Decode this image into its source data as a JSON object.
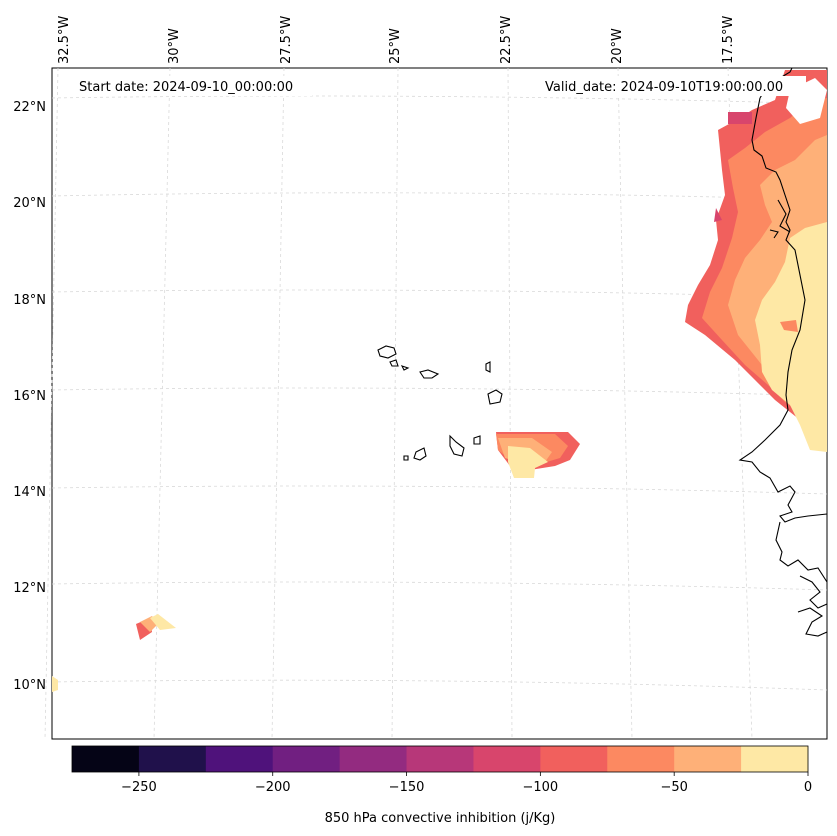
{
  "map": {
    "start_date": "Start date: 2024-09-10_00:00:00",
    "valid_date": "Valid_date: 2024-09-10T19:00:00.00",
    "lon_labels": [
      "32.5°W",
      "30°W",
      "27.5°W",
      "25°W",
      "22.5°W",
      "20°W",
      "17.5°W"
    ],
    "lat_labels": [
      "22°N",
      "20°N",
      "18°N",
      "16°N",
      "14°N",
      "12°N",
      "10°N"
    ],
    "coastline_color": "#000000",
    "gridline_color": "#d9d9d9"
  },
  "colorbar": {
    "label": "850 hPa convective inhibition (j/Kg)",
    "ticks": [
      "−250",
      "−200",
      "−150",
      "−100",
      "−50",
      "0"
    ],
    "levels": [
      -275,
      -250,
      -225,
      -200,
      -175,
      -150,
      -125,
      -100,
      -75,
      -50,
      -25,
      0
    ],
    "colors": [
      "#050416",
      "#20114b",
      "#4f127b",
      "#711f81",
      "#932b80",
      "#b73779",
      "#d8456c",
      "#f1605d",
      "#fc8961",
      "#feb078",
      "#fee8a5"
    ]
  }
}
